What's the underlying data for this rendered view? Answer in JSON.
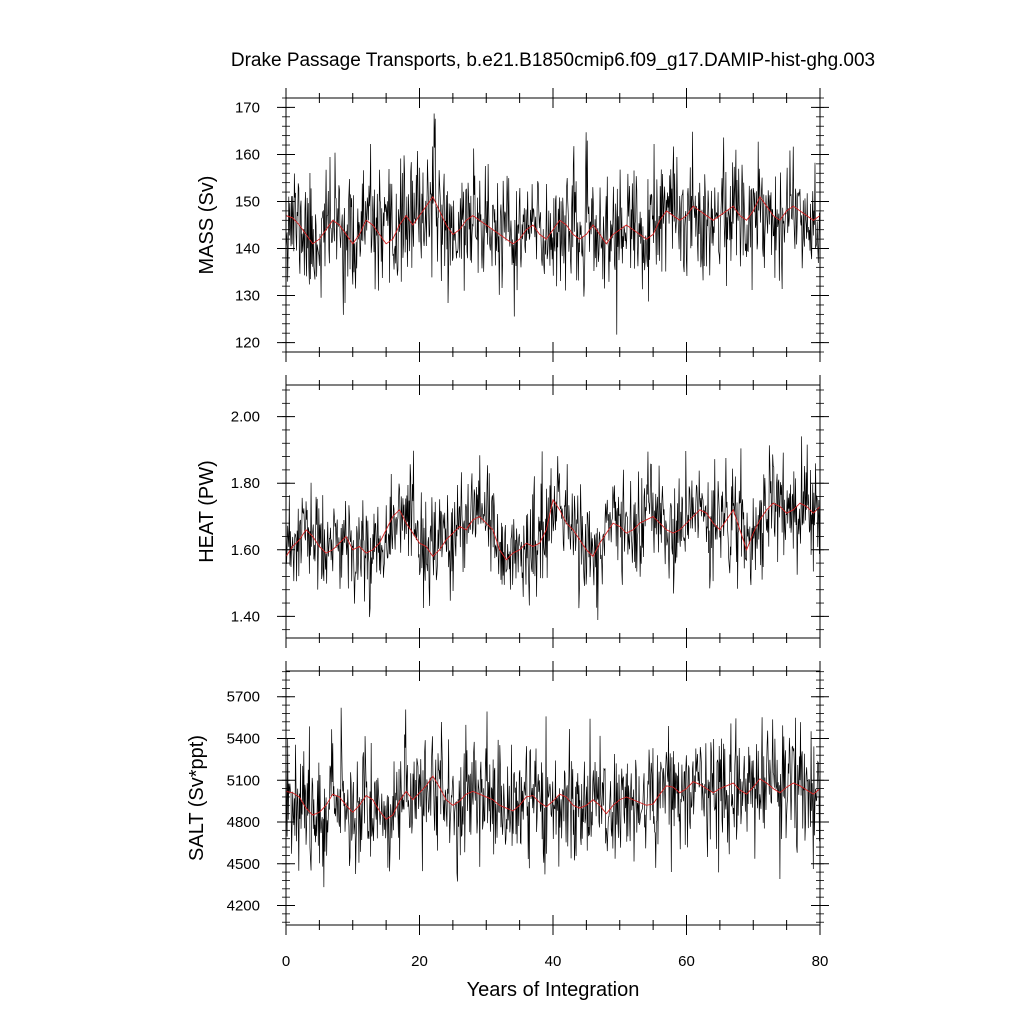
{
  "title": "Drake Passage Transports, b.e21.B1850cmip6.f09_g17.DAMIP-hist-ghg.003",
  "xlabel": "Years of Integration",
  "colors": {
    "raw": "#000000",
    "running_mean": "#d42020",
    "frame": "#000000"
  },
  "chart_data": [
    {
      "type": "line",
      "ylabel": "MASS (Sv)",
      "xlim": [
        0,
        80
      ],
      "ylim": [
        118,
        172
      ],
      "xticks": [
        0,
        20,
        40,
        60,
        80
      ],
      "xtick_labels": [
        "0",
        "20",
        "40",
        "60",
        "80"
      ],
      "yticks": [
        120,
        130,
        140,
        150,
        160,
        170
      ],
      "ytick_labels": [
        "120",
        "130",
        "140",
        "150",
        "160",
        "170"
      ],
      "grid": false,
      "series": [
        {
          "role": "monthly",
          "seed": 11,
          "x_start": 0,
          "x_end": 80,
          "samples": 960,
          "mean": 145,
          "amplitude": 14,
          "trend": [
            [
              0,
              145
            ],
            [
              80,
              147
            ]
          ]
        },
        {
          "role": "running mean",
          "x": [
            0,
            1,
            2,
            3,
            4,
            5,
            6,
            7,
            8,
            9,
            10,
            11,
            12,
            13,
            14,
            15,
            16,
            17,
            18,
            19,
            20,
            21,
            22,
            23,
            24,
            25,
            26,
            27,
            28,
            29,
            30,
            31,
            32,
            33,
            34,
            35,
            36,
            37,
            38,
            39,
            40,
            41,
            42,
            43,
            44,
            45,
            46,
            47,
            48,
            49,
            50,
            51,
            52,
            53,
            54,
            55,
            56,
            57,
            58,
            59,
            60,
            61,
            62,
            63,
            64,
            65,
            66,
            67,
            68,
            69,
            70,
            71,
            72,
            73,
            74,
            75,
            76,
            77,
            78,
            79,
            80
          ],
          "y": [
            147,
            146.5,
            145,
            143,
            141,
            142,
            144,
            146,
            145,
            143,
            141,
            143,
            146,
            145,
            143,
            141,
            142,
            145,
            147,
            145,
            147,
            149,
            151,
            148,
            145,
            143,
            144,
            146,
            147,
            146,
            145,
            144,
            143,
            142,
            141,
            142,
            144,
            145,
            143,
            142,
            144,
            146,
            145,
            143,
            142,
            143,
            145,
            143,
            141,
            143,
            144,
            145,
            144,
            143,
            142,
            143,
            146,
            148,
            147,
            146,
            147,
            149,
            148,
            147,
            146,
            147,
            148,
            149,
            147,
            146,
            148,
            151,
            149,
            147,
            146,
            148,
            149,
            148,
            147,
            146,
            147
          ]
        }
      ]
    },
    {
      "type": "line",
      "ylabel": "HEAT (PW)",
      "xlim": [
        0,
        80
      ],
      "ylim": [
        1.335,
        2.095
      ],
      "xticks": [
        0,
        20,
        40,
        60,
        80
      ],
      "xtick_labels": [
        "",
        "",
        "",
        "",
        ""
      ],
      "yticks": [
        1.4,
        1.6,
        1.8,
        2.0
      ],
      "ytick_labels": [
        "1.40",
        "1.60",
        "1.80",
        "2.00"
      ],
      "grid": false,
      "series": [
        {
          "role": "monthly",
          "seed": 23,
          "x_start": 0,
          "x_end": 80,
          "samples": 960,
          "mean": 1.64,
          "amplitude": 0.17,
          "trend": [
            [
              0,
              1.61
            ],
            [
              80,
              1.72
            ]
          ]
        },
        {
          "role": "running mean",
          "x": [
            0,
            1,
            2,
            3,
            4,
            5,
            6,
            7,
            8,
            9,
            10,
            11,
            12,
            13,
            14,
            15,
            16,
            17,
            18,
            19,
            20,
            21,
            22,
            23,
            24,
            25,
            26,
            27,
            28,
            29,
            30,
            31,
            32,
            33,
            34,
            35,
            36,
            37,
            38,
            39,
            40,
            41,
            42,
            43,
            44,
            45,
            46,
            47,
            48,
            49,
            50,
            51,
            52,
            53,
            54,
            55,
            56,
            57,
            58,
            59,
            60,
            61,
            62,
            63,
            64,
            65,
            66,
            67,
            68,
            69,
            70,
            71,
            72,
            73,
            74,
            75,
            76,
            77,
            78,
            79,
            80
          ],
          "y": [
            1.58,
            1.61,
            1.63,
            1.66,
            1.64,
            1.61,
            1.59,
            1.6,
            1.62,
            1.64,
            1.6,
            1.61,
            1.59,
            1.6,
            1.62,
            1.66,
            1.7,
            1.72,
            1.68,
            1.65,
            1.62,
            1.61,
            1.58,
            1.6,
            1.63,
            1.65,
            1.67,
            1.66,
            1.69,
            1.7,
            1.68,
            1.66,
            1.6,
            1.57,
            1.59,
            1.6,
            1.62,
            1.61,
            1.62,
            1.66,
            1.75,
            1.72,
            1.68,
            1.66,
            1.63,
            1.6,
            1.58,
            1.62,
            1.65,
            1.68,
            1.67,
            1.65,
            1.66,
            1.68,
            1.69,
            1.7,
            1.68,
            1.66,
            1.65,
            1.66,
            1.68,
            1.7,
            1.72,
            1.71,
            1.68,
            1.66,
            1.69,
            1.72,
            1.66,
            1.6,
            1.65,
            1.69,
            1.72,
            1.74,
            1.73,
            1.71,
            1.72,
            1.74,
            1.73,
            1.71,
            1.73
          ]
        }
      ]
    },
    {
      "type": "line",
      "ylabel": "SALT (Sv*ppt)",
      "xlim": [
        0,
        80
      ],
      "ylim": [
        4060,
        5885
      ],
      "xticks": [
        0,
        20,
        40,
        60,
        80
      ],
      "xtick_labels": [
        "0",
        "20",
        "40",
        "60",
        "80"
      ],
      "yticks": [
        4200,
        4500,
        4800,
        5100,
        5400,
        5700
      ],
      "ytick_labels": [
        "4200",
        "4500",
        "4800",
        "5100",
        "5400",
        "5700"
      ],
      "grid": false,
      "series": [
        {
          "role": "monthly",
          "seed": 37,
          "x_start": 0,
          "x_end": 80,
          "samples": 960,
          "mean": 4970,
          "amplitude": 470,
          "trend": [
            [
              0,
              4960
            ],
            [
              80,
              5010
            ]
          ]
        },
        {
          "role": "running mean",
          "x": [
            0,
            1,
            2,
            3,
            4,
            5,
            6,
            7,
            8,
            9,
            10,
            11,
            12,
            13,
            14,
            15,
            16,
            17,
            18,
            19,
            20,
            21,
            22,
            23,
            24,
            25,
            26,
            27,
            28,
            29,
            30,
            31,
            32,
            33,
            34,
            35,
            36,
            37,
            38,
            39,
            40,
            41,
            42,
            43,
            44,
            45,
            46,
            47,
            48,
            49,
            50,
            51,
            52,
            53,
            54,
            55,
            56,
            57,
            58,
            59,
            60,
            61,
            62,
            63,
            64,
            65,
            66,
            67,
            68,
            69,
            70,
            71,
            72,
            73,
            74,
            75,
            76,
            77,
            78,
            79,
            80
          ],
          "y": [
            5020,
            5010,
            4980,
            4900,
            4850,
            4870,
            4920,
            5000,
            4980,
            4920,
            4870,
            4920,
            4990,
            4960,
            4880,
            4820,
            4850,
            4950,
            5020,
            4960,
            5010,
            5060,
            5130,
            5050,
            4960,
            4920,
            4950,
            5000,
            5020,
            5000,
            4980,
            4960,
            4920,
            4900,
            4880,
            4920,
            4980,
            4990,
            4940,
            4910,
            4950,
            5000,
            4980,
            4920,
            4900,
            4920,
            4960,
            4920,
            4860,
            4920,
            4960,
            4980,
            4960,
            4940,
            4920,
            4930,
            5000,
            5060,
            5050,
            5010,
            5040,
            5090,
            5070,
            5040,
            5010,
            5040,
            5060,
            5080,
            5030,
            5000,
            5050,
            5110,
            5080,
            5040,
            5010,
            5050,
            5080,
            5060,
            5030,
            5000,
            5040
          ]
        }
      ]
    }
  ]
}
